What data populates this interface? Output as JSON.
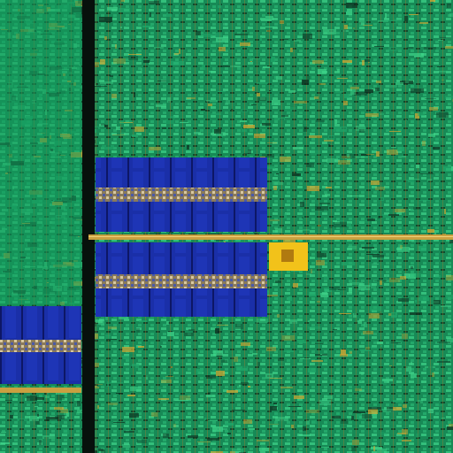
{
  "image": {
    "subject": "die-photo",
    "colors": {
      "logic_green": "#1fa86a",
      "logic_green_light": "#3fd68a",
      "logic_dark": "#0c2a1c",
      "memory_blue": "#1a2fa8",
      "memory_blue_dark": "#0d1766",
      "trace_gold": "#d8a830",
      "pad_yellow": "#f2c21a",
      "bus_black": "#07110c"
    }
  }
}
